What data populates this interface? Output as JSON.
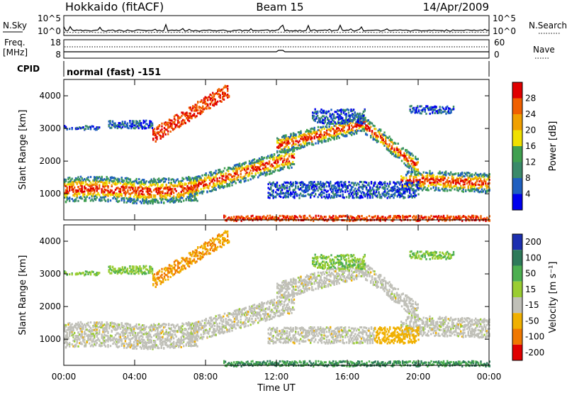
{
  "header": {
    "station": "Hokkaido (fitACF)",
    "beam": "Beam 15",
    "date": "14/Apr/2009"
  },
  "strip_panels": {
    "nsky_label": "N.Sky",
    "nsky_ticks": [
      "10^5",
      "10^0"
    ],
    "nsearch_label": "N.Search",
    "nsearch_ticks": [
      "10^5",
      "10^0"
    ],
    "freq_label_1": "Freq.",
    "freq_label_2": "[MHz]",
    "freq_ticks": [
      "18",
      "8"
    ],
    "nave_label": "Nave",
    "nave_ticks": [
      "60",
      "0"
    ],
    "cpid_label": "CPID",
    "cpid_value": "normal (fast) -151"
  },
  "chart_data": [
    {
      "type": "heatmap",
      "title": "",
      "xlabel": "",
      "ylabel": "Slant Range [km]",
      "x_ticks": [
        "00:00",
        "04:00",
        "08:00",
        "12:00",
        "16:00",
        "20:00",
        "00:00"
      ],
      "xlim": [
        0,
        24
      ],
      "y_ticks": [
        1000,
        2000,
        3000,
        4000
      ],
      "ylim": [
        200,
        4500
      ],
      "colorbar": {
        "label": "Power [dB]",
        "ticks": [
          4,
          8,
          12,
          16,
          20,
          24,
          28
        ],
        "range": [
          0,
          32
        ]
      },
      "colors": [
        "#0000ee",
        "#1f5fc0",
        "#3a8a6a",
        "#40a050",
        "#f0e000",
        "#f0a000",
        "#f06000",
        "#e00000"
      ]
    },
    {
      "type": "heatmap",
      "title": "",
      "xlabel": "Time UT",
      "ylabel": "Slant Range [km]",
      "x_ticks": [
        "00:00",
        "04:00",
        "08:00",
        "12:00",
        "16:00",
        "20:00",
        "00:00"
      ],
      "xlim": [
        0,
        24
      ],
      "y_ticks": [
        1000,
        2000,
        3000,
        4000
      ],
      "ylim": [
        200,
        4500
      ],
      "colorbar": {
        "label": "Velocity [m s⁻¹]",
        "ticks": [
          200,
          100,
          50,
          15,
          -15,
          -50,
          -100,
          -200
        ]
      },
      "colors": [
        "#1c2fb0",
        "#2e7a5a",
        "#4caf50",
        "#9acd32",
        "#c0c0b8",
        "#f0b000",
        "#f07800",
        "#e00000"
      ]
    }
  ]
}
